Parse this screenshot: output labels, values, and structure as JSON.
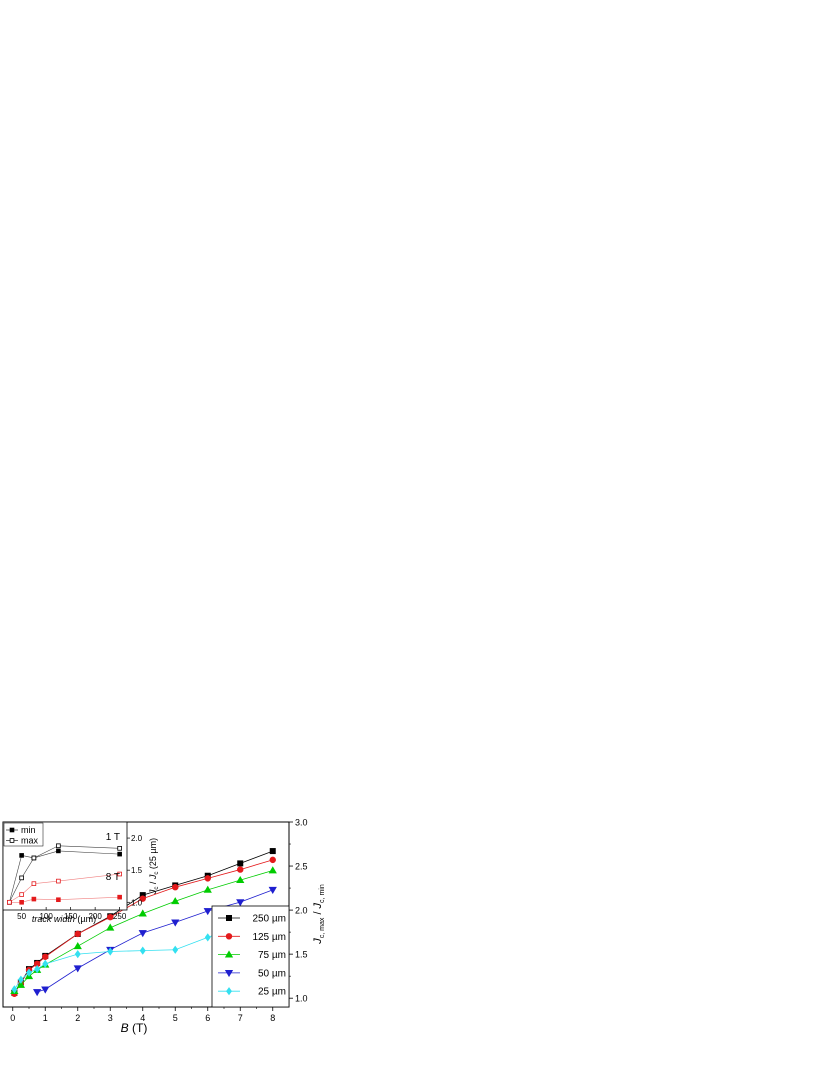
{
  "chart_data": [
    {
      "type": "line",
      "xlabel": "B (T)",
      "ylabel": "J_c, max / J_c, min",
      "ylabel_axis_side": "right",
      "xlim": [
        -0.3,
        8.5
      ],
      "ylim": [
        0.9,
        3.0
      ],
      "x_ticks": [
        "0",
        "1",
        "2",
        "3",
        "4",
        "5",
        "6",
        "7",
        "8"
      ],
      "y_ticks": [
        "1.0",
        "1.5",
        "2.0",
        "2.5",
        "3.0"
      ],
      "grid": false,
      "legend_position": "bottom-right",
      "series": [
        {
          "name": "250 µm",
          "color": "#000000",
          "marker": "square",
          "x": [
            0.05,
            0.25,
            0.5,
            0.75,
            1,
            2,
            3,
            4,
            5,
            6,
            7,
            8
          ],
          "y": [
            1.06,
            1.18,
            1.33,
            1.4,
            1.48,
            1.73,
            1.93,
            2.17,
            2.28,
            2.39,
            2.53,
            2.67
          ]
        },
        {
          "name": "125 µm",
          "color": "#e41a1c",
          "marker": "circle",
          "x": [
            0.05,
            0.25,
            0.5,
            0.75,
            1,
            2,
            3,
            4,
            5,
            6,
            7,
            8
          ],
          "y": [
            1.05,
            1.17,
            1.32,
            1.39,
            1.47,
            1.73,
            1.92,
            2.13,
            2.26,
            2.36,
            2.46,
            2.57
          ]
        },
        {
          "name": "75 µm",
          "color": "#00cc00",
          "marker": "triangle-up",
          "x": [
            0.05,
            0.25,
            0.5,
            0.75,
            1,
            2,
            3,
            4,
            5,
            6,
            7,
            8
          ],
          "y": [
            1.08,
            1.15,
            1.25,
            1.32,
            1.38,
            1.59,
            1.8,
            1.96,
            2.1,
            2.23,
            2.34,
            2.45
          ]
        },
        {
          "name": "50 µm",
          "color": "#1f1fcf",
          "marker": "triangle-down",
          "x": [
            0.75,
            1,
            2,
            3,
            4,
            5,
            6,
            7,
            8
          ],
          "y": [
            1.07,
            1.1,
            1.34,
            1.55,
            1.74,
            1.86,
            1.99,
            2.09,
            2.23
          ]
        },
        {
          "name": "25 µm",
          "color": "#33e0f0",
          "marker": "diamond",
          "x": [
            0.05,
            0.25,
            0.5,
            0.75,
            1,
            2,
            3,
            4,
            5,
            6,
            7,
            8
          ],
          "y": [
            1.1,
            1.21,
            1.29,
            1.33,
            1.39,
            1.5,
            1.53,
            1.54,
            1.55,
            1.69,
            1.82,
            1.97
          ]
        }
      ]
    },
    {
      "type": "line",
      "inset": true,
      "xlabel_italic": "track width",
      "xlabel_unit": " (µm)",
      "ylabel": "J_c / J_c (25 µm)",
      "xlim": [
        12,
        265
      ],
      "ylim": [
        0.88,
        2.25
      ],
      "x_ticks": [
        "50",
        "100",
        "150",
        "200",
        "250"
      ],
      "y_ticks": [
        "1.0",
        "1.5",
        "2.0"
      ],
      "legend_position": "top-left",
      "annotations": [
        {
          "text": "1 T",
          "color": "#000000"
        },
        {
          "text": "8 T",
          "color": "#e41a1c"
        }
      ],
      "series": [
        {
          "name": "min",
          "field": "1 T",
          "filled": true,
          "color": "#000000",
          "x": [
            25,
            50,
            75,
            125,
            250
          ],
          "y": [
            1.0,
            1.73,
            1.69,
            1.8,
            1.75
          ]
        },
        {
          "name": "max",
          "field": "1 T",
          "filled": false,
          "color": "#000000",
          "x": [
            25,
            50,
            75,
            125,
            250
          ],
          "y": [
            1.0,
            1.38,
            1.69,
            1.88,
            1.84
          ]
        },
        {
          "field": "8 T",
          "filled": true,
          "color": "#e41a1c",
          "x": [
            25,
            50,
            75,
            125,
            250
          ],
          "y": [
            1.0,
            1.0,
            1.05,
            1.04,
            1.08
          ]
        },
        {
          "field": "8 T",
          "filled": false,
          "color": "#e41a1c",
          "x": [
            25,
            50,
            75,
            125,
            250
          ],
          "y": [
            1.0,
            1.12,
            1.29,
            1.33,
            1.44
          ]
        }
      ]
    }
  ]
}
